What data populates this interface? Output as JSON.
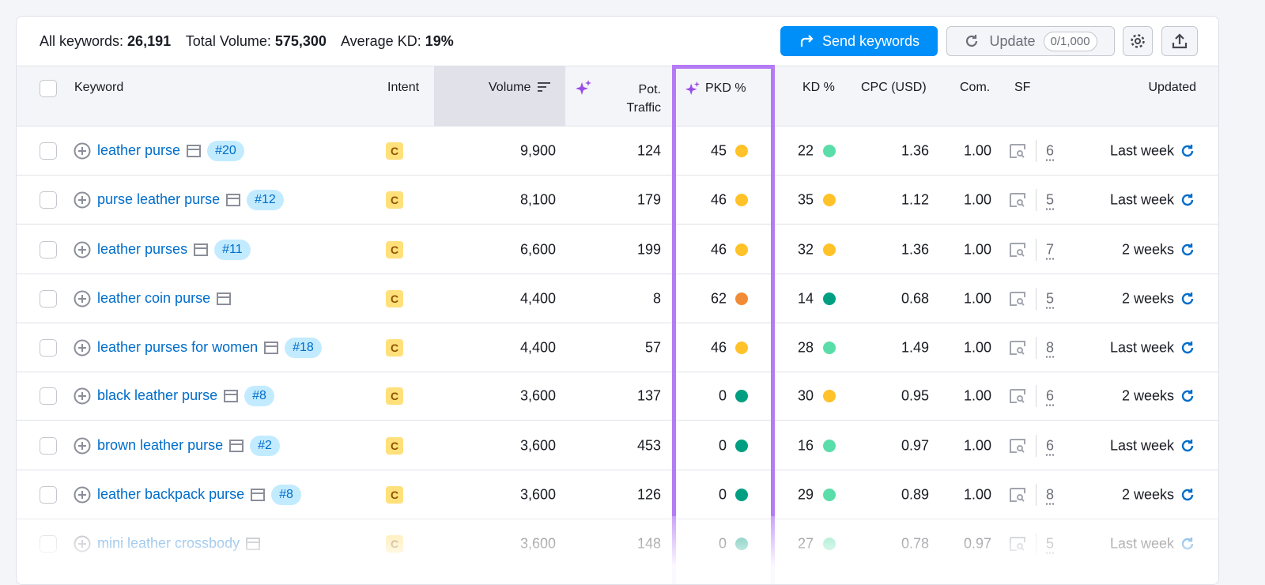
{
  "summary": {
    "all_keywords_label": "All keywords:",
    "all_keywords": "26,191",
    "total_volume_label": "Total Volume:",
    "total_volume": "575,300",
    "avg_kd_label": "Average KD:",
    "avg_kd": "19%"
  },
  "toolbar": {
    "send_label": "Send keywords",
    "update_label": "Update",
    "update_count": "0/1,000",
    "settings_icon": "gear-icon",
    "export_icon": "upload-icon"
  },
  "columns": {
    "keyword": "Keyword",
    "intent": "Intent",
    "volume": "Volume",
    "pot_traffic_1": "Pot.",
    "pot_traffic_2": "Traffic",
    "pkd": "PKD %",
    "kd": "KD %",
    "cpc": "CPC (USD)",
    "com": "Com.",
    "sf": "SF",
    "updated": "Updated"
  },
  "colors": {
    "accent": "#008ff8",
    "highlight": "#b47bf5",
    "yellow": "#ffc229",
    "orange": "#f28b36",
    "dark_green": "#009f81",
    "light_green": "#59dda9"
  },
  "rows": [
    {
      "keyword": "leather purse",
      "rank": "#20",
      "intent": "C",
      "volume": "9,900",
      "traffic": "124",
      "pkd": "45",
      "pkd_color": "#ffc229",
      "kd": "22",
      "kd_color": "#59dda9",
      "cpc": "1.36",
      "com": "1.00",
      "sf": "6",
      "updated": "Last week"
    },
    {
      "keyword": "purse leather purse",
      "rank": "#12",
      "intent": "C",
      "volume": "8,100",
      "traffic": "179",
      "pkd": "46",
      "pkd_color": "#ffc229",
      "kd": "35",
      "kd_color": "#ffc229",
      "cpc": "1.12",
      "com": "1.00",
      "sf": "5",
      "updated": "Last week"
    },
    {
      "keyword": "leather purses",
      "rank": "#11",
      "intent": "C",
      "volume": "6,600",
      "traffic": "199",
      "pkd": "46",
      "pkd_color": "#ffc229",
      "kd": "32",
      "kd_color": "#ffc229",
      "cpc": "1.36",
      "com": "1.00",
      "sf": "7",
      "updated": "2 weeks"
    },
    {
      "keyword": "leather coin purse",
      "rank": "",
      "intent": "C",
      "volume": "4,400",
      "traffic": "8",
      "pkd": "62",
      "pkd_color": "#f28b36",
      "kd": "14",
      "kd_color": "#009f81",
      "cpc": "0.68",
      "com": "1.00",
      "sf": "5",
      "updated": "2 weeks"
    },
    {
      "keyword": "leather purses for women",
      "rank": "#18",
      "intent": "C",
      "volume": "4,400",
      "traffic": "57",
      "pkd": "46",
      "pkd_color": "#ffc229",
      "kd": "28",
      "kd_color": "#59dda9",
      "cpc": "1.49",
      "com": "1.00",
      "sf": "8",
      "updated": "Last week"
    },
    {
      "keyword": "black leather purse",
      "rank": "#8",
      "intent": "C",
      "volume": "3,600",
      "traffic": "137",
      "pkd": "0",
      "pkd_color": "#009f81",
      "kd": "30",
      "kd_color": "#ffc229",
      "cpc": "0.95",
      "com": "1.00",
      "sf": "6",
      "updated": "2 weeks"
    },
    {
      "keyword": "brown leather purse",
      "rank": "#2",
      "intent": "C",
      "volume": "3,600",
      "traffic": "453",
      "pkd": "0",
      "pkd_color": "#009f81",
      "kd": "16",
      "kd_color": "#59dda9",
      "cpc": "0.97",
      "com": "1.00",
      "sf": "6",
      "updated": "Last week"
    },
    {
      "keyword": "leather backpack purse",
      "rank": "#8",
      "intent": "C",
      "volume": "3,600",
      "traffic": "126",
      "pkd": "0",
      "pkd_color": "#009f81",
      "kd": "29",
      "kd_color": "#59dda9",
      "cpc": "0.89",
      "com": "1.00",
      "sf": "8",
      "updated": "2 weeks"
    },
    {
      "keyword": "mini leather crossbody",
      "rank": "",
      "intent": "C",
      "volume": "3,600",
      "traffic": "148",
      "pkd": "0",
      "pkd_color": "#009f81",
      "kd": "27",
      "kd_color": "#59dda9",
      "cpc": "0.78",
      "com": "0.97",
      "sf": "5",
      "updated": "Last week"
    }
  ]
}
